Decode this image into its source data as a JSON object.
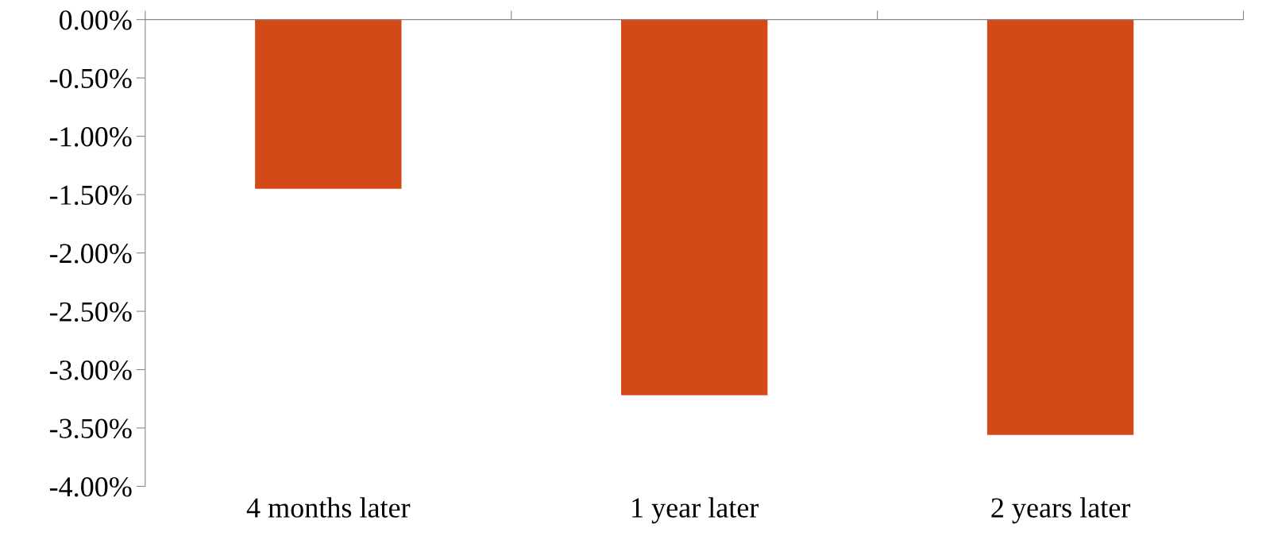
{
  "chart_data": {
    "type": "bar",
    "categories": [
      "4 months later",
      "1 year later",
      "2 years later"
    ],
    "values": [
      -1.45,
      -3.22,
      -3.56
    ],
    "color": "#d34917",
    "ylim": [
      -4,
      0
    ],
    "yticks": [
      {
        "value": 0,
        "label": "0.00%"
      },
      {
        "value": -0.5,
        "label": "-0.50%"
      },
      {
        "value": -1,
        "label": "-1.00%"
      },
      {
        "value": -1.5,
        "label": "-1.50%"
      },
      {
        "value": -2,
        "label": "-2.00%"
      },
      {
        "value": -2.5,
        "label": "-2.50%"
      },
      {
        "value": -3,
        "label": "-3.00%"
      },
      {
        "value": -3.5,
        "label": "-3.50%"
      },
      {
        "value": -4,
        "label": "-4.00%"
      }
    ],
    "grid": false,
    "legend": false
  }
}
